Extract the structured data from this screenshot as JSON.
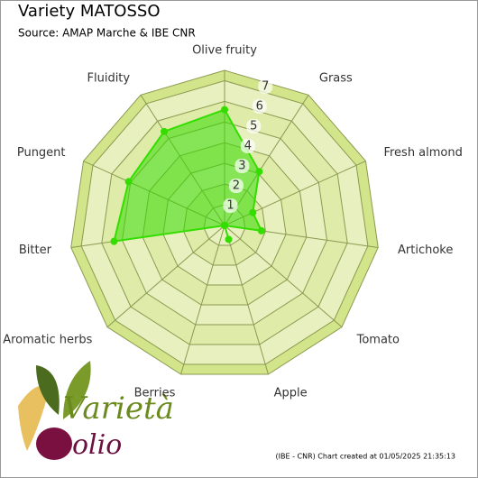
{
  "chart_data": {
    "type": "radar",
    "title": "Variety MATOSSO",
    "subtitle": "Source: AMAP Marche & IBE CNR",
    "categories": [
      "Olive fruity",
      "Grass",
      "Fresh almond",
      "Artichoke",
      "Tomato",
      "Apple",
      "Berries",
      "Aromatic herbs",
      "Bitter",
      "Pungent",
      "Fluidity"
    ],
    "values": [
      5.6,
      3.1,
      1.5,
      1.8,
      0,
      0.7,
      0,
      0,
      5.4,
      5.1,
      5.4
    ],
    "color": "#33dd00",
    "ylim": [
      0,
      7.5
    ],
    "yticks": [
      1,
      2,
      3,
      4,
      5,
      6,
      7
    ],
    "footer": "(IBE - CNR) Chart created at 01/05/2025 21:35:13",
    "logo": [
      "Varietà",
      "olio"
    ]
  }
}
